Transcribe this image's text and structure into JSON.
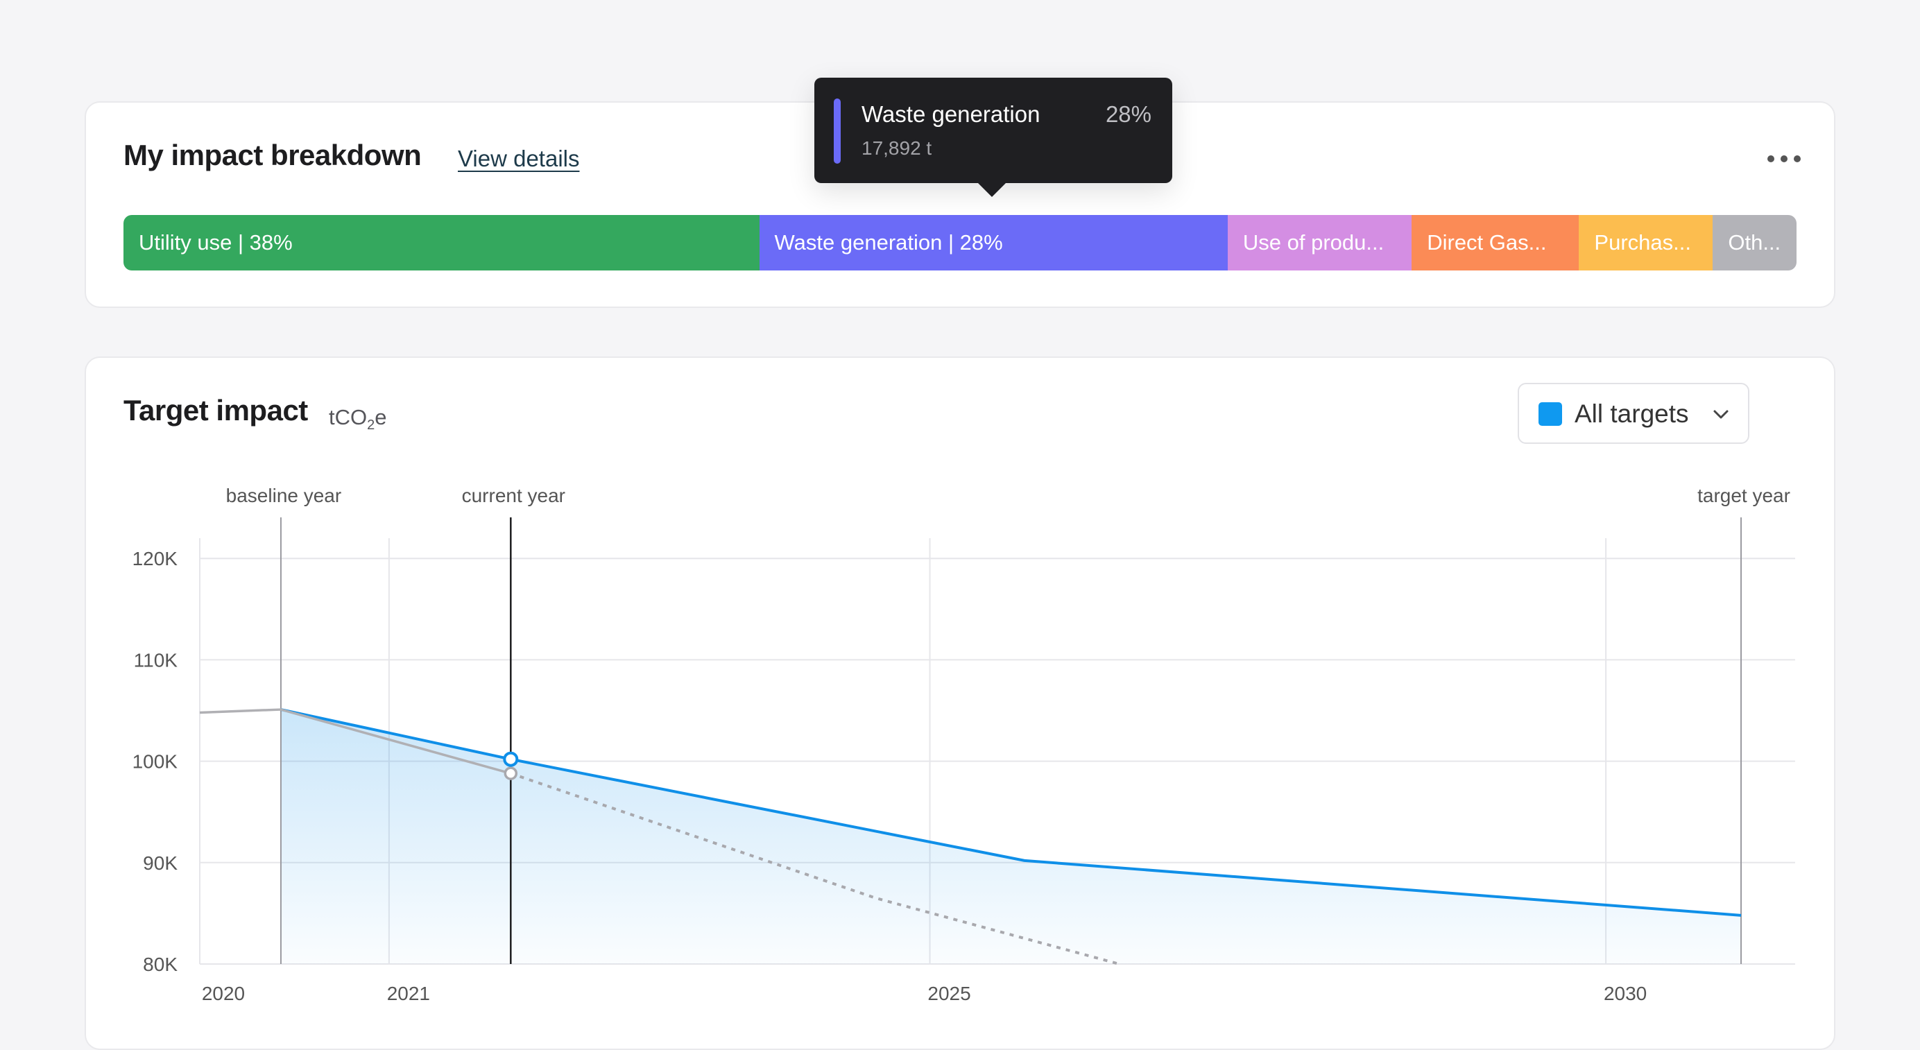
{
  "breakdown": {
    "title": "My impact breakdown",
    "view_details": "View details",
    "more_icon": "more-horizontal-icon",
    "segments": [
      {
        "label": "Utility use | 38%",
        "share": 0.38,
        "color": "#34a85e"
      },
      {
        "label": "Waste generation | 28%",
        "share": 0.28,
        "color": "#6b6bf7"
      },
      {
        "label": "Use of produ...",
        "share": 0.11,
        "color": "#d48ee3"
      },
      {
        "label": "Direct Gas...",
        "share": 0.1,
        "color": "#fb8b56"
      },
      {
        "label": "Purchas...",
        "share": 0.08,
        "color": "#fcbd4f"
      },
      {
        "label": "Oth...",
        "share": 0.05,
        "color": "#b3b3b8"
      }
    ],
    "tooltip": {
      "label": "Waste generation",
      "percent": "28%",
      "value": "17,892 t",
      "color": "#6b6bf7"
    }
  },
  "target": {
    "title": "Target impact",
    "unit_main": "tCO",
    "unit_sub": "2",
    "unit_suffix": "e",
    "select": {
      "label": "All targets",
      "swatch_color": "#0f99f0",
      "chevron_icon": "chevron-down-icon"
    }
  },
  "chart_data": {
    "type": "line",
    "y_ticks": [
      {
        "label": "120K",
        "value": 120000
      },
      {
        "label": "110K",
        "value": 110000
      },
      {
        "label": "100K",
        "value": 100000
      },
      {
        "label": "90K",
        "value": 90000
      },
      {
        "label": "80K",
        "value": 80000
      }
    ],
    "x_ticks": [
      {
        "label": "2020",
        "x": 2020,
        "muted": false
      },
      {
        "label": "2021",
        "x": 2021,
        "muted": true
      },
      {
        "label": "2025",
        "x": 2025,
        "muted": false
      },
      {
        "label": "2030",
        "x": 2030,
        "muted": false
      }
    ],
    "ylim": [
      80000,
      122000
    ],
    "xlim": [
      2019.6,
      2031.4
    ],
    "markers": [
      {
        "label": "baseline year",
        "x": 2020.2,
        "emphasis": false
      },
      {
        "label": "current year",
        "x": 2021.9,
        "emphasis": true
      },
      {
        "label": "target year",
        "x": 2031.0,
        "emphasis": false
      }
    ],
    "series": [
      {
        "role": "target",
        "color": "#0f8fe8",
        "points": [
          [
            2020.2,
            105100
          ],
          [
            2021.9,
            100200
          ],
          [
            2025.7,
            90200
          ],
          [
            2031.0,
            84800
          ]
        ]
      },
      {
        "role": "actual",
        "color": "#b0b0b4",
        "points": [
          [
            2019.6,
            104800
          ],
          [
            2020.2,
            105100
          ],
          [
            2021.9,
            98800
          ]
        ]
      },
      {
        "role": "projection",
        "color": "#a8a8ad",
        "dashed": true,
        "points": [
          [
            2021.9,
            98800
          ],
          [
            2024.6,
            86500
          ],
          [
            2026.4,
            80000
          ]
        ]
      }
    ]
  }
}
